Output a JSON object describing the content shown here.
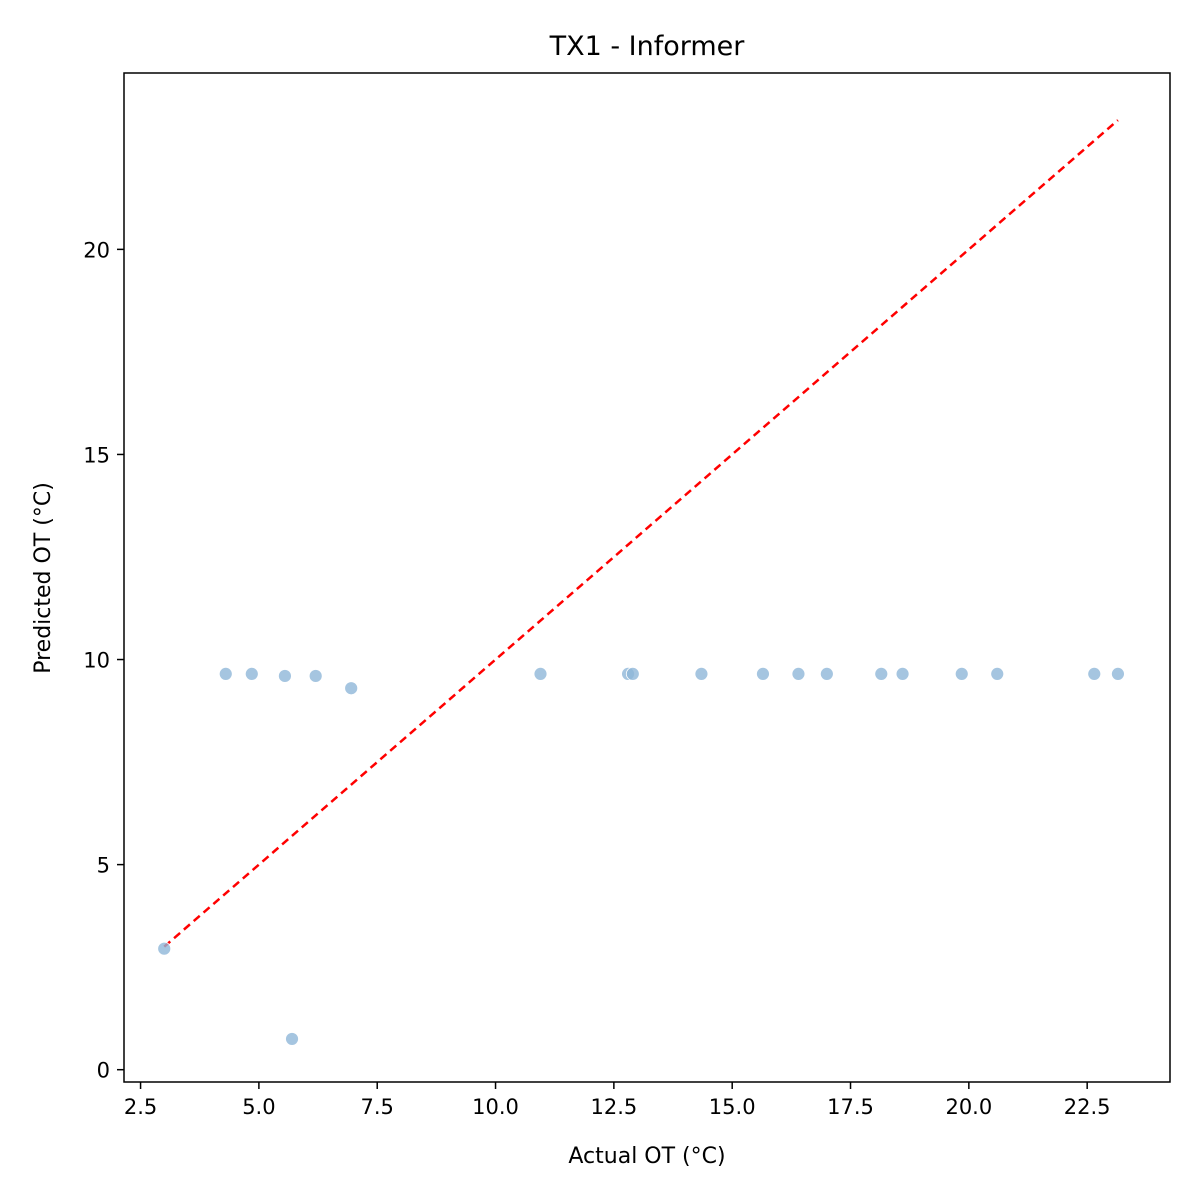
{
  "chart_data": {
    "type": "scatter",
    "title": "TX1 - Informer",
    "xlabel": "Actual OT (°C)",
    "ylabel": "Predicted OT (°C)",
    "xlim": [
      2.15,
      24.25
    ],
    "ylim": [
      -0.3,
      24.3
    ],
    "xticks": [
      2.5,
      5.0,
      7.5,
      10.0,
      12.5,
      15.0,
      17.5,
      20.0,
      22.5
    ],
    "xtick_labels": [
      "2.5",
      "5.0",
      "7.5",
      "10.0",
      "12.5",
      "15.0",
      "17.5",
      "20.0",
      "22.5"
    ],
    "yticks": [
      0,
      5,
      10,
      15,
      20
    ],
    "ytick_labels": [
      "0",
      "5",
      "10",
      "15",
      "20"
    ],
    "grid": false,
    "point_color": "#8fb6d8",
    "reference_line": {
      "x": [
        3.0,
        23.15
      ],
      "y": [
        3.0,
        23.15
      ],
      "color": "#ff0000",
      "style": "dashed"
    },
    "points": [
      {
        "x": 3.0,
        "y": 2.95
      },
      {
        "x": 4.3,
        "y": 9.65
      },
      {
        "x": 4.85,
        "y": 9.65
      },
      {
        "x": 5.55,
        "y": 9.6
      },
      {
        "x": 6.2,
        "y": 9.6
      },
      {
        "x": 6.95,
        "y": 9.3
      },
      {
        "x": 5.7,
        "y": 0.75
      },
      {
        "x": 10.95,
        "y": 9.65
      },
      {
        "x": 12.8,
        "y": 9.65
      },
      {
        "x": 12.9,
        "y": 9.65
      },
      {
        "x": 14.35,
        "y": 9.65
      },
      {
        "x": 15.65,
        "y": 9.65
      },
      {
        "x": 16.4,
        "y": 9.65
      },
      {
        "x": 17.0,
        "y": 9.65
      },
      {
        "x": 18.15,
        "y": 9.65
      },
      {
        "x": 18.6,
        "y": 9.65
      },
      {
        "x": 19.85,
        "y": 9.65
      },
      {
        "x": 20.6,
        "y": 9.65
      },
      {
        "x": 22.65,
        "y": 9.65
      },
      {
        "x": 23.15,
        "y": 9.65
      }
    ]
  }
}
